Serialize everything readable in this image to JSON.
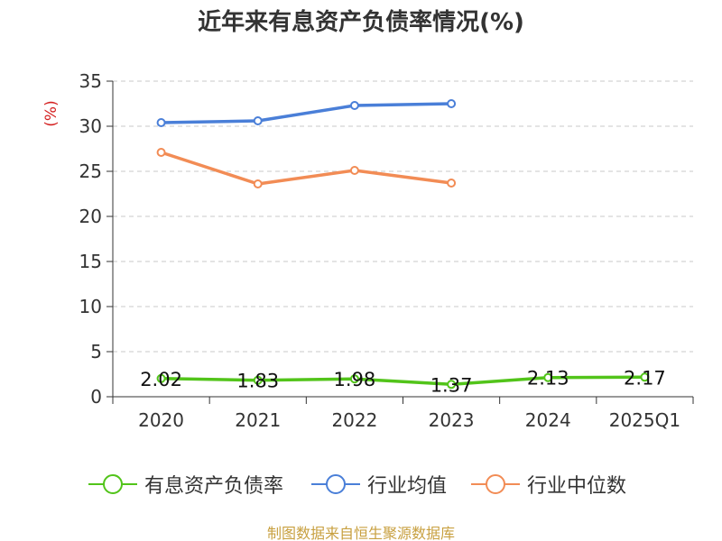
{
  "chart_data": {
    "type": "line",
    "title": "近年来有息资产负债率情况(%)",
    "ylabel": "(%)",
    "categories": [
      "2020",
      "2021",
      "2022",
      "2023",
      "2024",
      "2025Q1"
    ],
    "ylim": [
      0,
      35
    ],
    "yticks": [
      "0",
      "5",
      "10",
      "15",
      "20",
      "25",
      "30",
      "35"
    ],
    "grid": true,
    "legend_position": "bottom",
    "series": [
      {
        "name": "有息资产负债率",
        "color": "#52c41a",
        "values": [
          2.02,
          1.83,
          1.98,
          1.37,
          2.13,
          2.17
        ],
        "labels": [
          "2.02",
          "1.83",
          "1.98",
          "1.37",
          "2.13",
          "2.17"
        ]
      },
      {
        "name": "行业均值",
        "color": "#4a7fd8",
        "values": [
          30.4,
          30.6,
          32.3,
          32.5,
          null,
          null
        ]
      },
      {
        "name": "行业中位数",
        "color": "#f28c55",
        "values": [
          27.1,
          23.6,
          25.1,
          23.7,
          null,
          null
        ]
      }
    ]
  },
  "source_note": "制图数据来自恒生聚源数据库"
}
